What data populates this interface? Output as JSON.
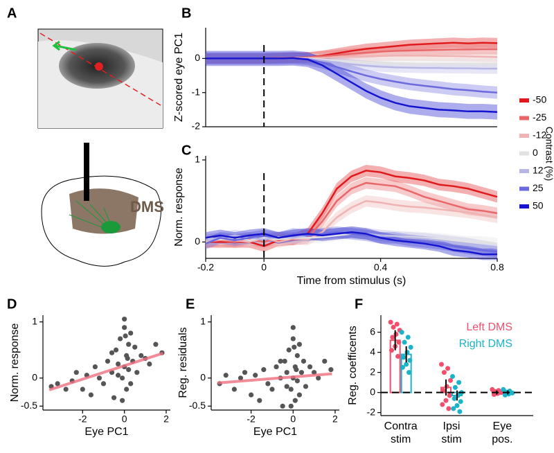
{
  "figure": {
    "panel_label": "A",
    "region_label": "DMS"
  },
  "chart_data": [
    {
      "type": "line",
      "panel_label": "B",
      "ylabel": "Z-scored eye PC1",
      "x": [
        -0.2,
        -0.15,
        -0.1,
        -0.05,
        0,
        0.05,
        0.1,
        0.15,
        0.2,
        0.25,
        0.3,
        0.35,
        0.4,
        0.45,
        0.5,
        0.55,
        0.6,
        0.65,
        0.7,
        0.75,
        0.8
      ],
      "xlim": [
        -0.2,
        0.8
      ],
      "ylim": [
        -2,
        0.9
      ],
      "yticks": [
        -2,
        -1,
        0
      ],
      "vline_x": 0,
      "legend_title": "Contrast (%)",
      "series": [
        {
          "name": "-50",
          "color": "#e0191c",
          "error": 0.15,
          "values": [
            0,
            0,
            0,
            0,
            0,
            0.01,
            0.02,
            0.03,
            0.08,
            0.15,
            0.22,
            0.28,
            0.32,
            0.36,
            0.4,
            0.42,
            0.44,
            0.46,
            0.44,
            0.46,
            0.45
          ]
        },
        {
          "name": "-25",
          "color": "#e8686a",
          "error": 0.15,
          "values": [
            0,
            0,
            0,
            0,
            0,
            0.01,
            0.02,
            0.03,
            0.06,
            0.1,
            0.14,
            0.17,
            0.2,
            0.22,
            0.23,
            0.24,
            0.25,
            0.26,
            0.26,
            0.27,
            0.27
          ]
        },
        {
          "name": "-12",
          "color": "#efb3b3",
          "error": 0.15,
          "values": [
            0,
            0,
            0,
            0,
            0,
            0,
            0.01,
            0.01,
            0.02,
            0.04,
            0.05,
            0.06,
            0.07,
            0.08,
            0.08,
            0.08,
            0.07,
            0.07,
            0.06,
            0.05,
            0.04
          ]
        },
        {
          "name": "0",
          "color": "#e2e2e2",
          "error": 0.15,
          "values": [
            0,
            0,
            0,
            0,
            0,
            0,
            0.01,
            0,
            -0.03,
            -0.06,
            -0.09,
            -0.11,
            -0.13,
            -0.14,
            -0.15,
            -0.15,
            -0.15,
            -0.15,
            -0.15,
            -0.15,
            -0.15
          ]
        },
        {
          "name": "12",
          "color": "#b6b6e6",
          "error": 0.15,
          "values": [
            0,
            0,
            0,
            0,
            0,
            0,
            0.01,
            -0.01,
            -0.06,
            -0.12,
            -0.17,
            -0.21,
            -0.24,
            -0.26,
            -0.27,
            -0.28,
            -0.28,
            -0.29,
            -0.29,
            -0.3,
            -0.3
          ]
        },
        {
          "name": "25",
          "color": "#6a6ade",
          "error": 0.18,
          "values": [
            0,
            0,
            0,
            0,
            0,
            0,
            0.01,
            -0.02,
            -0.12,
            -0.25,
            -0.38,
            -0.5,
            -0.6,
            -0.68,
            -0.75,
            -0.8,
            -0.85,
            -0.9,
            -0.93,
            -0.97,
            -1.0
          ]
        },
        {
          "name": "50",
          "color": "#1515cf",
          "error": 0.22,
          "values": [
            0,
            0,
            0,
            0,
            0,
            0,
            0.01,
            -0.03,
            -0.2,
            -0.45,
            -0.7,
            -0.95,
            -1.15,
            -1.3,
            -1.4,
            -1.45,
            -1.5,
            -1.52,
            -1.55,
            -1.55,
            -1.57
          ]
        }
      ]
    },
    {
      "type": "line",
      "panel_label": "C",
      "ylabel": "Norm. response",
      "xlabel": "Time from stimulus (s)",
      "x": [
        -0.2,
        -0.15,
        -0.1,
        -0.05,
        0,
        0.05,
        0.1,
        0.15,
        0.2,
        0.25,
        0.3,
        0.35,
        0.4,
        0.45,
        0.5,
        0.55,
        0.6,
        0.65,
        0.7,
        0.75,
        0.8
      ],
      "xlim": [
        -0.2,
        0.8
      ],
      "xticks": [
        -0.2,
        0,
        0.4,
        0.8
      ],
      "ylim": [
        -0.2,
        1.05
      ],
      "yticks": [
        0,
        1
      ],
      "vline_x": 0,
      "series": [
        {
          "color": "#e0191c",
          "error": 0.07,
          "values": [
            0,
            0,
            0,
            0,
            -0.05,
            0.02,
            0.03,
            0.1,
            0.35,
            0.65,
            0.8,
            0.87,
            0.85,
            0.8,
            0.78,
            0.75,
            0.7,
            0.68,
            0.65,
            0.6,
            0.55
          ]
        },
        {
          "color": "#e8686a",
          "error": 0.07,
          "values": [
            0,
            0.02,
            0,
            0.03,
            0,
            0.05,
            0.03,
            0.05,
            0.25,
            0.5,
            0.65,
            0.72,
            0.7,
            0.68,
            0.62,
            0.55,
            0.5,
            0.45,
            0.4,
            0.38,
            0.35
          ]
        },
        {
          "color": "#efb3b3",
          "error": 0.07,
          "values": [
            0,
            0.03,
            0.02,
            0,
            0.05,
            0,
            0.04,
            0.03,
            0.12,
            0.3,
            0.42,
            0.5,
            0.48,
            0.45,
            0.43,
            0.42,
            0.4,
            0.38,
            0.36,
            0.33,
            0.3
          ]
        },
        {
          "color": "#e2e2e2",
          "error": 0.07,
          "values": [
            0.05,
            0.03,
            0.05,
            0.02,
            0.05,
            0.03,
            0.05,
            0.05,
            0.06,
            0.08,
            0.1,
            0.1,
            0.08,
            0.07,
            0.06,
            0.05,
            0.04,
            0.02,
            0,
            0,
            -0.02
          ]
        },
        {
          "color": "#b6b6e6",
          "error": 0.07,
          "values": [
            0.02,
            0.05,
            0.08,
            0.05,
            0.03,
            0.06,
            0.05,
            0.08,
            0.1,
            0.1,
            0.12,
            0.1,
            0.08,
            0.06,
            0.05,
            0.04,
            0.02,
            0,
            -0.02,
            -0.05,
            -0.08
          ]
        },
        {
          "color": "#6a6ade",
          "error": 0.07,
          "values": [
            -0.02,
            0.05,
            0.02,
            0.05,
            0.08,
            0.05,
            0.1,
            0.08,
            0.1,
            0.12,
            0.1,
            0.08,
            0.05,
            0.05,
            0.02,
            0,
            -0.02,
            -0.05,
            -0.08,
            -0.1,
            -0.12
          ]
        },
        {
          "color": "#1515cf",
          "error": 0.07,
          "values": [
            0.05,
            0.08,
            0.05,
            0.08,
            0.1,
            0.05,
            0.08,
            0.1,
            0.08,
            0.1,
            0.12,
            0.1,
            0.05,
            0.02,
            0,
            -0.02,
            -0.05,
            -0.1,
            -0.12,
            -0.15,
            -0.15
          ]
        }
      ]
    },
    {
      "type": "scatter",
      "panel_label": "D",
      "xlabel": "Eye PC1",
      "ylabel": "Norm. response",
      "xlim": [
        -3.9,
        2.2
      ],
      "xticks": [
        -2,
        0,
        2
      ],
      "ylim": [
        -0.57,
        1.12
      ],
      "yticks": [
        -0.5,
        0,
        1
      ],
      "color": "#555555",
      "fit": {
        "slope": 0.12,
        "intercept": 0.22,
        "color": "#f07080"
      },
      "x": [
        -3.5,
        -3.2,
        -2.8,
        -2.5,
        -2.3,
        -2.0,
        -1.8,
        -1.6,
        -1.4,
        -1.2,
        -1.0,
        -0.8,
        -0.6,
        -0.5,
        -0.4,
        -0.3,
        -0.2,
        -0.1,
        0,
        0,
        0.1,
        0.1,
        0.2,
        0.2,
        0.3,
        0.4,
        0.5,
        0.6,
        0.8,
        1.0,
        1.2,
        1.5,
        1.8,
        -0.1,
        0.05,
        -0.3,
        0.15,
        -0.6,
        0.3,
        0.0
      ],
      "values": [
        -0.15,
        -0.1,
        -0.2,
        -0.05,
        0.1,
        -0.2,
        0.05,
        -0.3,
        0.2,
        0.0,
        -0.1,
        0.3,
        0.1,
        -0.35,
        0.5,
        0.25,
        0.7,
        0.0,
        1.05,
        0.9,
        0.4,
        -0.2,
        0.6,
        0.15,
        0.8,
        0.3,
        0.55,
        0.1,
        0.4,
        0.35,
        0.25,
        0.6,
        0.45,
        -0.4,
        0.75,
        0.05,
        0.35,
        0.45,
        -0.1,
        0.2
      ]
    },
    {
      "type": "scatter",
      "panel_label": "E",
      "xlabel": "Eye PC1",
      "ylabel": "Reg. residuals",
      "xlim": [
        -3.9,
        2.2
      ],
      "xticks": [
        -2,
        0,
        2
      ],
      "ylim": [
        -0.57,
        1.12
      ],
      "yticks": [
        -0.5,
        0,
        1
      ],
      "color": "#555555",
      "fit": {
        "slope": 0.03,
        "intercept": 0.02,
        "color": "#f07080"
      },
      "x": [
        -3.5,
        -3.2,
        -2.8,
        -2.5,
        -2.3,
        -2.0,
        -1.8,
        -1.6,
        -1.4,
        -1.2,
        -1.0,
        -0.8,
        -0.6,
        -0.5,
        -0.4,
        -0.3,
        -0.2,
        -0.1,
        0,
        0,
        0.1,
        0.1,
        0.2,
        0.2,
        0.3,
        0.4,
        0.5,
        0.6,
        0.8,
        1.0,
        1.2,
        1.5,
        1.8,
        -0.1,
        0.05,
        -0.3,
        0.15,
        -0.6,
        0.3,
        0.0
      ],
      "values": [
        -0.1,
        0.05,
        -0.2,
        0.0,
        0.1,
        -0.3,
        0.05,
        -0.4,
        0.15,
        -0.1,
        -0.2,
        0.2,
        0.0,
        -0.5,
        0.3,
        0.1,
        0.5,
        -0.2,
        0.9,
        0.7,
        0.2,
        -0.4,
        0.4,
        -0.05,
        0.6,
        0.1,
        0.3,
        -0.15,
        0.2,
        0.1,
        0.0,
        0.3,
        0.15,
        -0.5,
        0.55,
        -0.15,
        0.15,
        0.3,
        -0.3,
        0.0
      ]
    },
    {
      "type": "bar",
      "panel_label": "F",
      "ylabel": "Reg. coefficents",
      "categories": [
        [
          "Contra",
          "stim"
        ],
        [
          "Ipsi",
          "stim"
        ],
        [
          "Eye",
          "pos."
        ]
      ],
      "ylim": [
        -2.3,
        7.7
      ],
      "yticks": [
        -2,
        0,
        2,
        4,
        6
      ],
      "hline_y": 0,
      "legend": "upper right",
      "series": [
        {
          "name": "Left DMS",
          "color": "#f0506e",
          "values": [
            5.2,
            0.5,
            0.0
          ],
          "errors": [
            1.0,
            0.8,
            0.2
          ],
          "points": [
            [
              7.0,
              6.8,
              6.5,
              6.2,
              5.8,
              5.5,
              5.0,
              4.6,
              4.2,
              3.6
            ],
            [
              2.8,
              2.4,
              2.0,
              1.2,
              0.6,
              0.2,
              -0.3,
              -0.8,
              -1.2,
              -1.6
            ],
            [
              0.3,
              0.2,
              0.1,
              0.0,
              -0.1,
              -0.2
            ]
          ]
        },
        {
          "name": "Right DMS",
          "color": "#1ab3c8",
          "values": [
            3.8,
            -0.3,
            0.0
          ],
          "errors": [
            0.8,
            0.5,
            0.2
          ],
          "points": [
            [
              6.0,
              5.5,
              5.0,
              4.5,
              4.0,
              3.5,
              3.2,
              2.8,
              2.5,
              2.0
            ],
            [
              1.6,
              1.0,
              0.5,
              0.0,
              -0.3,
              -0.6,
              -0.9,
              -1.3,
              -1.6,
              -1.9
            ],
            [
              0.3,
              0.15,
              0.05,
              -0.05,
              -0.15,
              -0.25
            ]
          ]
        }
      ]
    }
  ]
}
